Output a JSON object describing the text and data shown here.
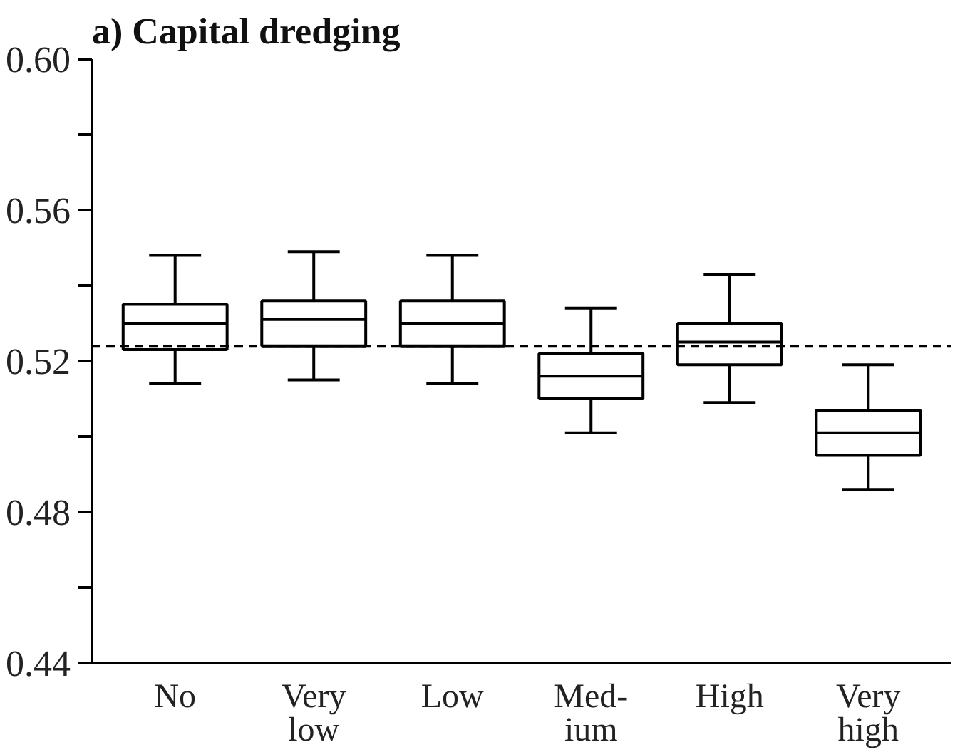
{
  "chart_data": {
    "type": "box",
    "title": "a) Capital dredging",
    "categories": [
      "No",
      "Very\nlow",
      "Low",
      "Med-\nium",
      "High",
      "Very\nhigh"
    ],
    "boxes": [
      {
        "low": 0.514,
        "q1": 0.523,
        "median": 0.53,
        "q3": 0.535,
        "high": 0.548
      },
      {
        "low": 0.515,
        "q1": 0.524,
        "median": 0.531,
        "q3": 0.536,
        "high": 0.549
      },
      {
        "low": 0.514,
        "q1": 0.524,
        "median": 0.53,
        "q3": 0.536,
        "high": 0.548
      },
      {
        "low": 0.501,
        "q1": 0.51,
        "median": 0.516,
        "q3": 0.522,
        "high": 0.534
      },
      {
        "low": 0.509,
        "q1": 0.519,
        "median": 0.525,
        "q3": 0.53,
        "high": 0.543
      },
      {
        "low": 0.486,
        "q1": 0.495,
        "median": 0.501,
        "q3": 0.507,
        "high": 0.519
      }
    ],
    "color": "#000000",
    "ylim": [
      0.44,
      0.6
    ],
    "yticks": [
      {
        "value": 0.44,
        "label": "0.44"
      },
      {
        "value": 0.46,
        "label": null
      },
      {
        "value": 0.48,
        "label": "0.48"
      },
      {
        "value": 0.5,
        "label": null
      },
      {
        "value": 0.52,
        "label": "0.52"
      },
      {
        "value": 0.54,
        "label": null
      },
      {
        "value": 0.56,
        "label": "0.56"
      },
      {
        "value": 0.58,
        "label": null
      },
      {
        "value": 0.6,
        "label": "0.60"
      }
    ],
    "ref_lines": [
      {
        "axis": "y",
        "value": 0.524,
        "line_style": "dashed",
        "color": "#000000"
      }
    ],
    "grid": false
  }
}
